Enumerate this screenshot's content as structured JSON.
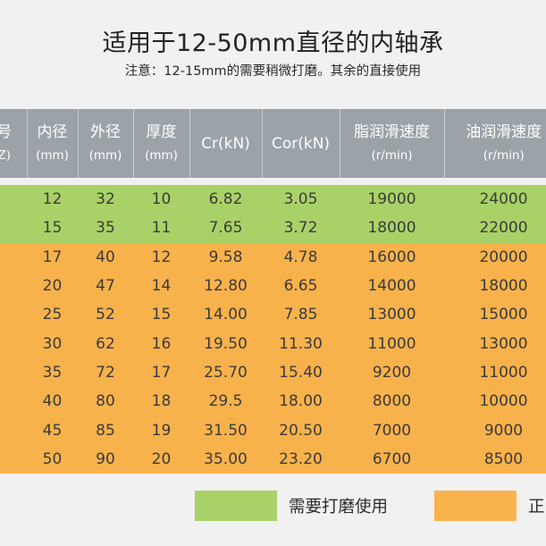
{
  "title": "适用于12-50mm直径的内轴承",
  "subtitle": "注意：12-15mm的需要稍微打磨。其余的直接使用",
  "table": {
    "headers": [
      {
        "main": "号",
        "sub": "Z)"
      },
      {
        "main": "内径",
        "sub": "(mm)"
      },
      {
        "main": "外径",
        "sub": "(mm)"
      },
      {
        "main": "厚度",
        "sub": "(mm)"
      },
      {
        "main": "Cr(kN)",
        "sub": ""
      },
      {
        "main": "Cor(kN)",
        "sub": ""
      },
      {
        "main": "脂润滑速度",
        "sub": "(r/min)"
      },
      {
        "main": "油润滑速度",
        "sub": "(r/min)"
      }
    ],
    "rows": [
      {
        "group": "green",
        "cells": [
          "",
          "12",
          "32",
          "10",
          "6.82",
          "3.05",
          "19000",
          "24000"
        ]
      },
      {
        "group": "green",
        "cells": [
          "",
          "15",
          "35",
          "11",
          "7.65",
          "3.72",
          "18000",
          "22000"
        ]
      },
      {
        "group": "orange",
        "cells": [
          "",
          "17",
          "40",
          "12",
          "9.58",
          "4.78",
          "16000",
          "20000"
        ]
      },
      {
        "group": "orange",
        "cells": [
          "",
          "20",
          "47",
          "14",
          "12.80",
          "6.65",
          "14000",
          "18000"
        ]
      },
      {
        "group": "orange",
        "cells": [
          "",
          "25",
          "52",
          "15",
          "14.00",
          "7.85",
          "13000",
          "15000"
        ]
      },
      {
        "group": "orange",
        "cells": [
          "",
          "30",
          "62",
          "16",
          "19.50",
          "11.30",
          "11000",
          "13000"
        ]
      },
      {
        "group": "orange",
        "cells": [
          "",
          "35",
          "72",
          "17",
          "25.70",
          "15.40",
          "9200",
          "11000"
        ]
      },
      {
        "group": "orange",
        "cells": [
          "",
          "40",
          "80",
          "18",
          "29.5",
          "18.00",
          "8000",
          "10000"
        ]
      },
      {
        "group": "orange",
        "cells": [
          "",
          "45",
          "85",
          "19",
          "31.50",
          "20.50",
          "7000",
          "9000"
        ]
      },
      {
        "group": "orange",
        "cells": [
          "",
          "50",
          "90",
          "20",
          "35.00",
          "23.20",
          "6700",
          "8500"
        ]
      }
    ]
  },
  "legend": {
    "green_label": "需要打磨使用",
    "orange_label": "正"
  },
  "colors": {
    "header": "#9ba2a8",
    "green": "#a8d267",
    "orange": "#f8b24c"
  }
}
